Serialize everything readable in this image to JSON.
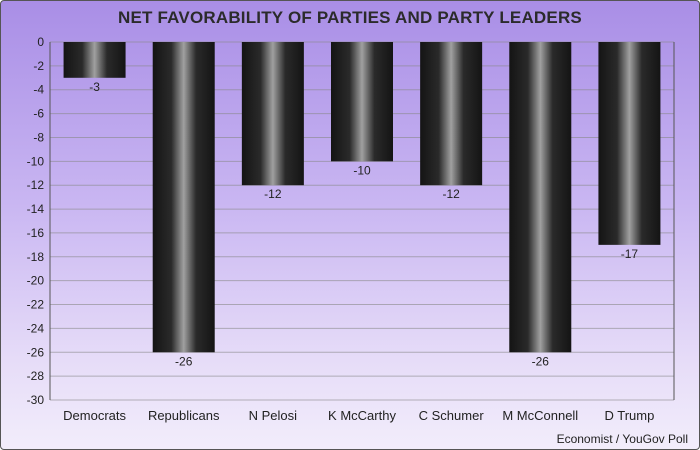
{
  "title": "NET FAVORABILITY OF PARTIES AND PARTY LEADERS",
  "source": "Economist / YouGov Poll",
  "colors": {
    "bar_dark": "#151515",
    "bar_light": "#9a9a9a",
    "grid": "#888888",
    "text": "#222222"
  },
  "chart_data": {
    "type": "bar",
    "categories": [
      "Democrats",
      "Republicans",
      "N Pelosi",
      "K McCarthy",
      "C Schumer",
      "M McConnell",
      "D Trump"
    ],
    "values": [
      -3,
      -26,
      -12,
      -10,
      -12,
      -26,
      -17
    ],
    "data_labels": [
      "-3",
      "-26",
      "-12",
      "-10",
      "-12",
      "-26",
      "-17"
    ],
    "ylim": [
      -30,
      0
    ],
    "yticks": [
      0,
      -2,
      -4,
      -6,
      -8,
      -10,
      -12,
      -14,
      -16,
      -18,
      -20,
      -22,
      -24,
      -26,
      -28,
      -30
    ],
    "grid": true
  }
}
